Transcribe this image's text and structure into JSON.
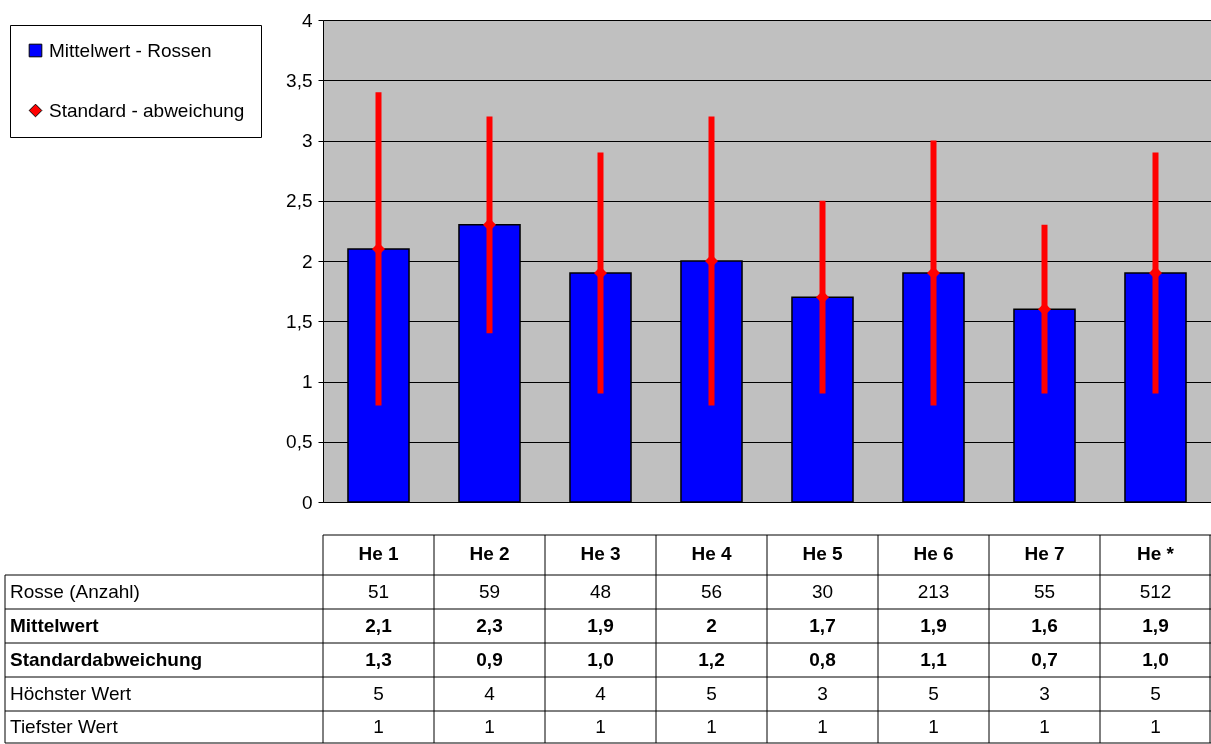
{
  "chart_data": {
    "type": "bar",
    "categories": [
      "He 1",
      "He 2",
      "He 3",
      "He 4",
      "He 5",
      "He 6",
      "He 7",
      "He *"
    ],
    "series": [
      {
        "name": "Mittelwert - Rossen",
        "color": "#0000ff",
        "values": [
          2.1,
          2.3,
          1.9,
          2,
          1.7,
          1.9,
          1.6,
          1.9
        ],
        "value_labels": [
          "2,1",
          "2,3",
          "1,9",
          "2",
          "1,7",
          "1,9",
          "1,6",
          "1,9"
        ]
      },
      {
        "name": "Standard - abweichung",
        "type": "scatter",
        "color": "#ff0000",
        "marker": "diamond",
        "values": [
          2.1,
          2.3,
          1.9,
          2,
          1.7,
          1.9,
          1.6,
          1.9
        ],
        "errors": [
          1.3,
          0.9,
          1.0,
          1.2,
          0.8,
          1.1,
          0.7,
          1.0
        ]
      }
    ],
    "ylim": [
      0,
      4
    ],
    "yticks": [
      0,
      {
        "value": 0.5,
        "label": "0,5"
      },
      1,
      {
        "value": 1.5,
        "label": "1,5"
      },
      2,
      {
        "value": 2.5,
        "label": "2,5"
      },
      3,
      {
        "value": 3.5,
        "label": "3,5"
      },
      4
    ],
    "grid": "y",
    "legend": "left",
    "annotations": [
      "Rosse (Anzahl)",
      "Mittelwert",
      "Standardabweichung",
      "Höchster Wert",
      "Tiefster Wert",
      "51",
      "59",
      "48",
      "56",
      "30",
      "213",
      "55",
      "512",
      "1,3",
      "0,9",
      "1,0",
      "1,2",
      "0,8",
      "1,1",
      "0,7",
      "1,0",
      "5",
      "4",
      "4",
      "5",
      "3",
      "5",
      "3",
      "5",
      "1",
      "1",
      "1",
      "1",
      "1",
      "1",
      "1",
      "1"
    ]
  }
}
